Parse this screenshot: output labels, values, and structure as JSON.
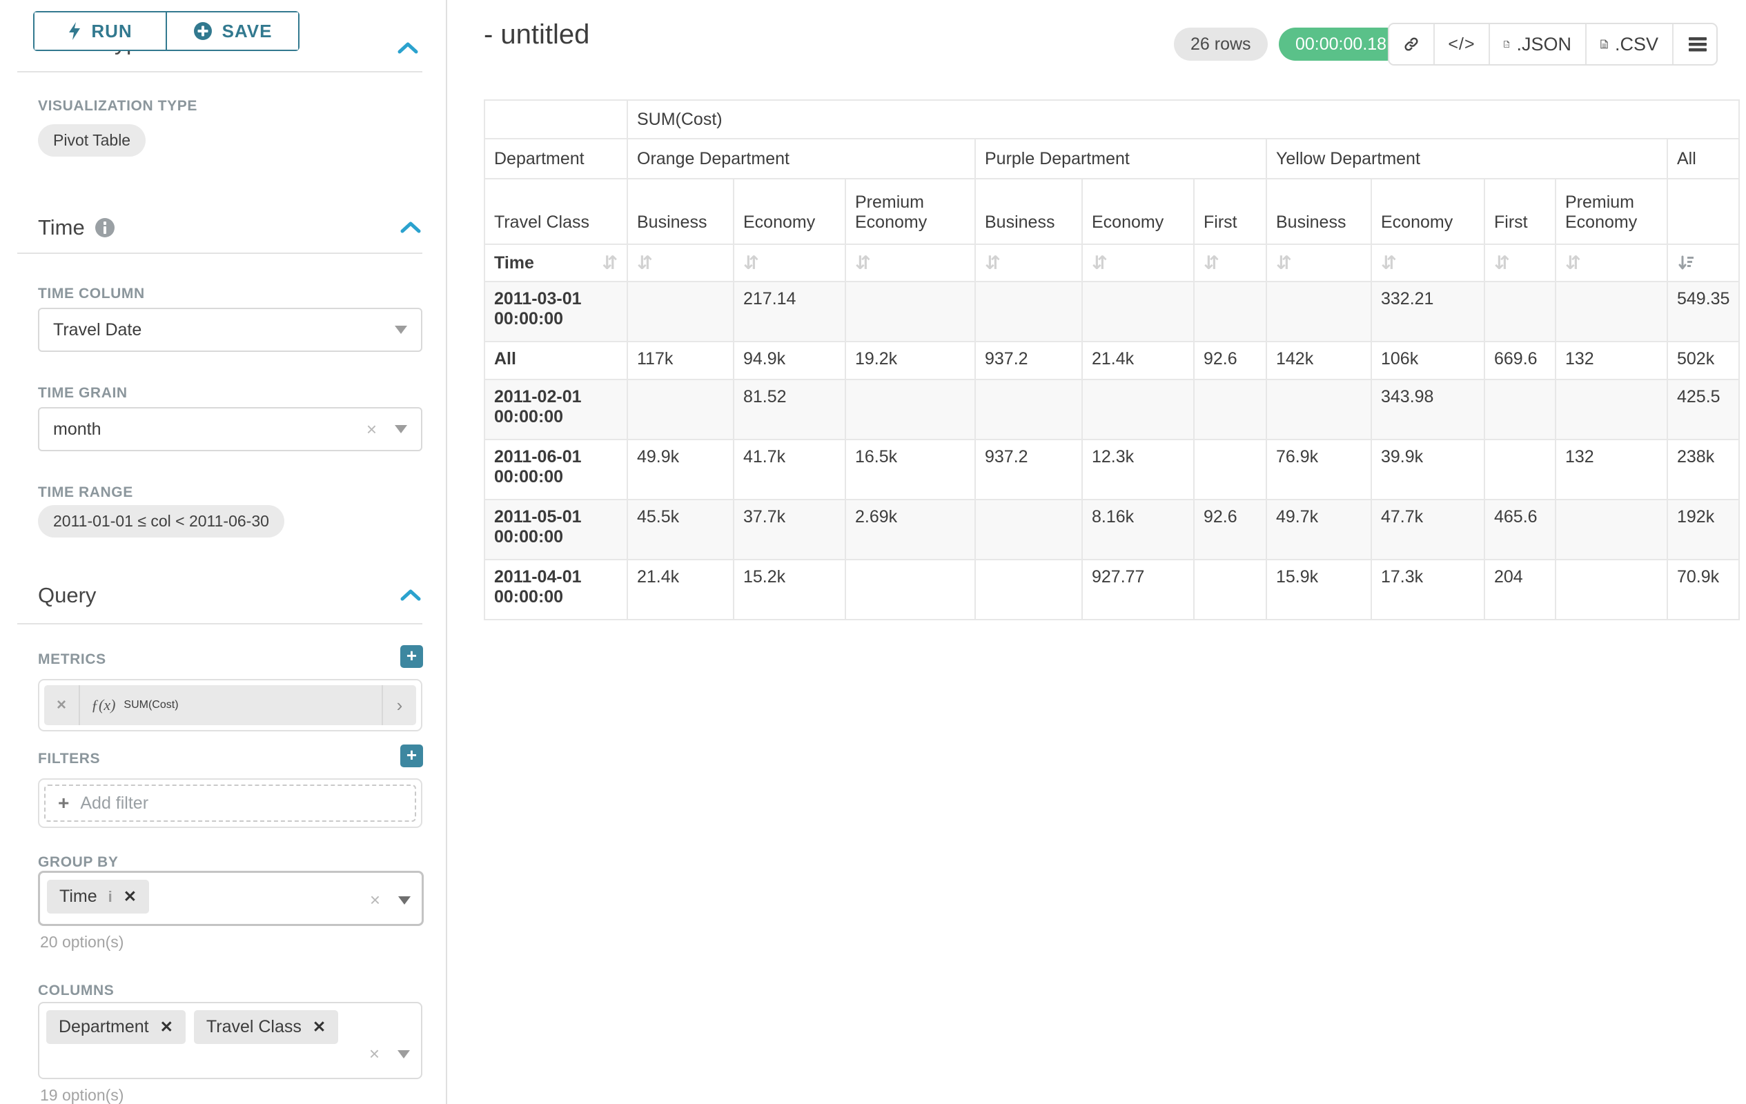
{
  "app": {
    "accent_teal": "#32798f",
    "caret_blue": "#2ba2ce",
    "timer_green": "#5ac189"
  },
  "toolbar": {
    "run_label": "RUN",
    "save_label": "SAVE"
  },
  "sidebar": {
    "chart_type": {
      "title": "Chart Type",
      "viz_label": "VISUALIZATION TYPE",
      "viz_value": "Pivot Table"
    },
    "time": {
      "title": "Time",
      "time_column": {
        "label": "TIME COLUMN",
        "value": "Travel Date"
      },
      "time_grain": {
        "label": "TIME GRAIN",
        "value": "month"
      },
      "time_range": {
        "label": "TIME RANGE",
        "value": "2011-01-01 ≤ col < 2011-06-30"
      }
    },
    "query": {
      "title": "Query",
      "metrics": {
        "label": "METRICS",
        "fx": "ƒ(x)",
        "value": "SUM(Cost)"
      },
      "filters": {
        "label": "FILTERS",
        "placeholder": "Add filter"
      },
      "group_by": {
        "label": "GROUP BY",
        "chips": [
          "Time"
        ],
        "hint": "20 option(s)"
      },
      "columns": {
        "label": "COLUMNS",
        "chips": [
          "Department",
          "Travel Class"
        ],
        "hint": "19 option(s)"
      }
    }
  },
  "header": {
    "title": "- untitled",
    "rows_badge": "26 rows",
    "timer": "00:00:00.18",
    "json_label": ".JSON",
    "csv_label": ".CSV"
  },
  "pivot": {
    "metric_header": "SUM(Cost)",
    "department_label": "Department",
    "travel_class_label": "Travel Class",
    "time_label": "Time",
    "all_label": "All",
    "col_groups": [
      {
        "department": "Orange Department",
        "classes": [
          "Business",
          "Economy",
          "Premium Economy"
        ]
      },
      {
        "department": "Purple Department",
        "classes": [
          "Business",
          "Economy",
          "First"
        ]
      },
      {
        "department": "Yellow Department",
        "classes": [
          "Business",
          "Economy",
          "First",
          "Premium Economy"
        ]
      }
    ],
    "rows": [
      {
        "time": "2011-03-01 00:00:00",
        "values": [
          "",
          "217.14",
          "",
          "",
          "",
          "",
          "",
          "332.21",
          "",
          "",
          "549.35"
        ]
      },
      {
        "time": "All",
        "values": [
          "117k",
          "94.9k",
          "19.2k",
          "937.2",
          "21.4k",
          "92.6",
          "142k",
          "106k",
          "669.6",
          "132",
          "502k"
        ]
      },
      {
        "time": "2011-02-01 00:00:00",
        "values": [
          "",
          "81.52",
          "",
          "",
          "",
          "",
          "",
          "343.98",
          "",
          "",
          "425.5"
        ]
      },
      {
        "time": "2011-06-01 00:00:00",
        "values": [
          "49.9k",
          "41.7k",
          "16.5k",
          "937.2",
          "12.3k",
          "",
          "76.9k",
          "39.9k",
          "",
          "132",
          "238k"
        ]
      },
      {
        "time": "2011-05-01 00:00:00",
        "values": [
          "45.5k",
          "37.7k",
          "2.69k",
          "",
          "8.16k",
          "92.6",
          "49.7k",
          "47.7k",
          "465.6",
          "",
          "192k"
        ]
      },
      {
        "time": "2011-04-01 00:00:00",
        "values": [
          "21.4k",
          "15.2k",
          "",
          "",
          "927.77",
          "",
          "15.9k",
          "17.3k",
          "204",
          "",
          "70.9k"
        ]
      }
    ]
  }
}
